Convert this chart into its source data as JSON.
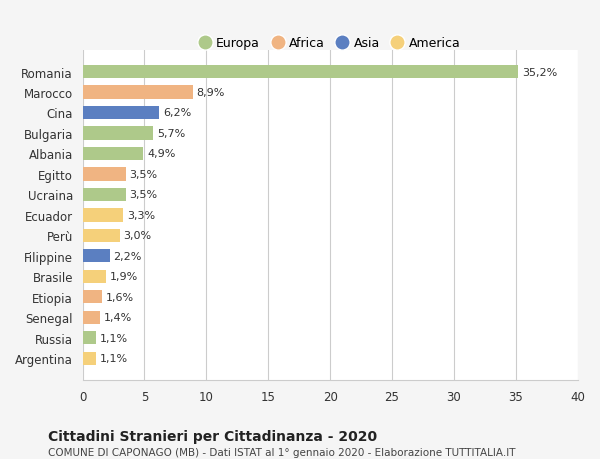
{
  "countries": [
    "Romania",
    "Marocco",
    "Cina",
    "Bulgaria",
    "Albania",
    "Egitto",
    "Ucraina",
    "Ecuador",
    "Perù",
    "Filippine",
    "Brasile",
    "Etiopia",
    "Senegal",
    "Russia",
    "Argentina"
  ],
  "values": [
    35.2,
    8.9,
    6.2,
    5.7,
    4.9,
    3.5,
    3.5,
    3.3,
    3.0,
    2.2,
    1.9,
    1.6,
    1.4,
    1.1,
    1.1
  ],
  "labels": [
    "35,2%",
    "8,9%",
    "6,2%",
    "5,7%",
    "4,9%",
    "3,5%",
    "3,5%",
    "3,3%",
    "3,0%",
    "2,2%",
    "1,9%",
    "1,6%",
    "1,4%",
    "1,1%",
    "1,1%"
  ],
  "colors": [
    "#aec98a",
    "#f0b482",
    "#5b7fc1",
    "#aec98a",
    "#aec98a",
    "#f0b482",
    "#aec98a",
    "#f5d07a",
    "#f5d07a",
    "#5b7fc1",
    "#f5d07a",
    "#f0b482",
    "#f0b482",
    "#aec98a",
    "#f5d07a"
  ],
  "legend_labels": [
    "Europa",
    "Africa",
    "Asia",
    "America"
  ],
  "legend_colors": [
    "#aec98a",
    "#f0b482",
    "#5b7fc1",
    "#f5d07a"
  ],
  "xlim": [
    0,
    40
  ],
  "xticks": [
    0,
    5,
    10,
    15,
    20,
    25,
    30,
    35,
    40
  ],
  "title": "Cittadini Stranieri per Cittadinanza - 2020",
  "subtitle": "COMUNE DI CAPONAGO (MB) - Dati ISTAT al 1° gennaio 2020 - Elaborazione TUTTITALIA.IT",
  "background_color": "#f5f5f5",
  "bar_background": "#ffffff",
  "grid_color": "#cccccc"
}
